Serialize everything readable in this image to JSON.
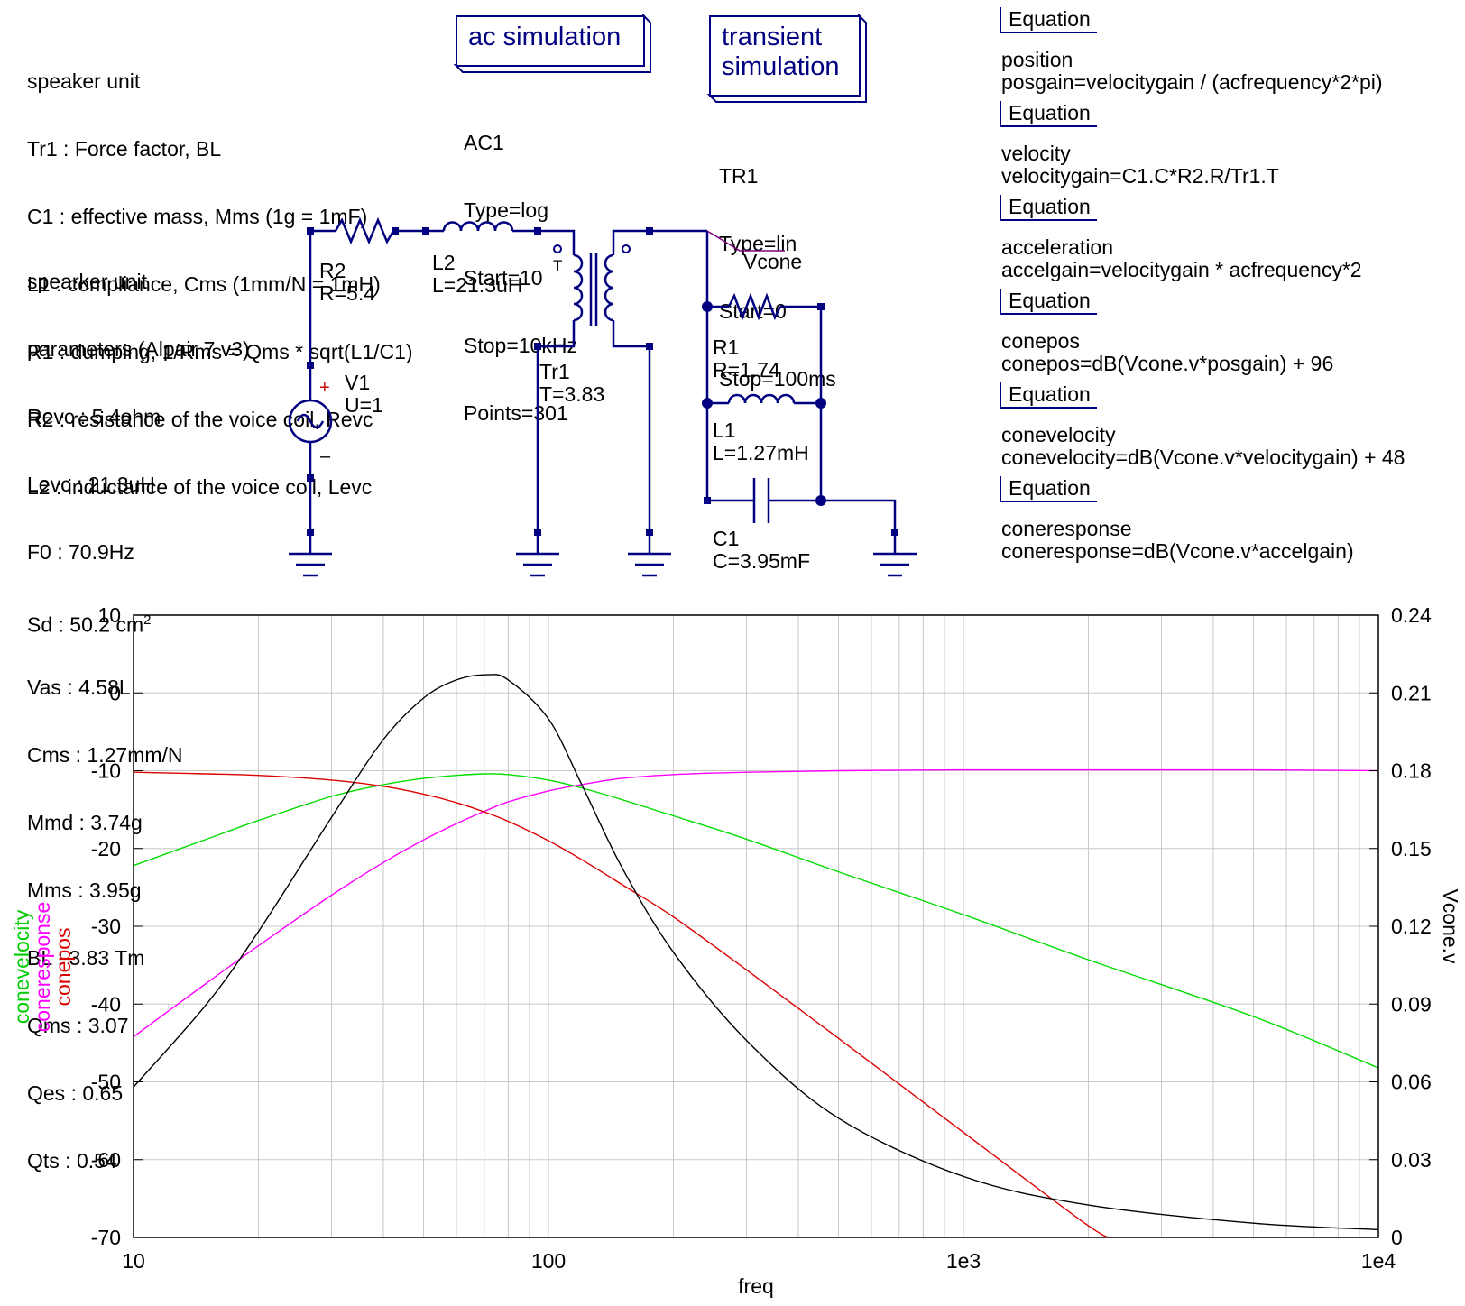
{
  "notes": {
    "description_lines": [
      "speaker unit",
      "Tr1 : Force factor, BL",
      "C1 : effective mass, Mms (1g = 1mF)",
      "L1 : compliance, Cms (1mm/N = 1mH)",
      "R1 : dumping, 1/Rms = Qms * sqrt(L1/C1)",
      "R2 : resistance of the voice coil, Revc",
      "L2 : inductance of the voice coil, Levc"
    ],
    "params_lines": [
      "spearker unit",
      "parameters (Alpair 7 v3)",
      "Revc : 5.4ohm",
      "Levc : 21.3uH",
      "F0 : 70.9Hz",
      "Sd : 50.2 cm",
      "Vas : 4.58L",
      "Cms : 1.27mm/N",
      "Mmd : 3.74g",
      "Mms : 3.95g",
      "BL : 3.83 Tm",
      "Qms : 3.07",
      "Qes : 0.65",
      "Qts : 0.54"
    ],
    "sd_superscript": "2"
  },
  "simulations": {
    "ac": {
      "title": "ac simulation",
      "lines": [
        "AC1",
        "Type=log",
        "Start=10",
        "Stop=10kHz",
        "Points=301"
      ]
    },
    "tr": {
      "title_line1": "transient",
      "title_line2": "simulation",
      "lines": [
        "TR1",
        "Type=lin",
        "Start=0",
        "Stop=100ms"
      ]
    }
  },
  "equations": [
    {
      "header": "Equation",
      "name": "position",
      "expr": "posgain=velocitygain / (acfrequency*2*pi)"
    },
    {
      "header": "Equation",
      "name": "velocity",
      "expr": "velocitygain=C1.C*R2.R/Tr1.T"
    },
    {
      "header": "Equation",
      "name": "acceleration",
      "expr": "accelgain=velocitygain * acfrequency*2"
    },
    {
      "header": "Equation",
      "name": "conepos",
      "expr": "conepos=dB(Vcone.v*posgain) + 96"
    },
    {
      "header": "Equation",
      "name": "conevelocity",
      "expr": "conevelocity=dB(Vcone.v*velocitygain) + 48"
    },
    {
      "header": "Equation",
      "name": "coneresponse",
      "expr": "coneresponse=dB(Vcone.v*accelgain)"
    }
  ],
  "components": {
    "r2": {
      "name": "R2",
      "value": "R=5.4"
    },
    "l2": {
      "name": "L2",
      "value": "L=21.3uH"
    },
    "tr1": {
      "name": "Tr1",
      "value": "T=3.83",
      "dot_label": "T"
    },
    "v1": {
      "name": "V1",
      "value": "U=1",
      "plus": "+",
      "minus": "–"
    },
    "r1": {
      "name": "R1",
      "value": "R=1.74"
    },
    "l1": {
      "name": "L1",
      "value": "L=1.27mH"
    },
    "c1": {
      "name": "C1",
      "value": "C=3.95mF"
    },
    "node": {
      "label": "Vcone"
    }
  },
  "colors": {
    "wire": "#000080",
    "conevelocity": "#00dd00",
    "coneresponse": "#ff00ff",
    "conepos": "#dd0000",
    "vcone": "#000000"
  },
  "chart_data": {
    "type": "line",
    "xscale": "log",
    "xlim": [
      10,
      10000
    ],
    "ylim_left": [
      -70,
      10
    ],
    "ylim_right": [
      0,
      0.24
    ],
    "xlabel": "freq",
    "ylabels_left": [
      "conevelocity",
      "coneresponse",
      "conepos"
    ],
    "ylabel_right": "Vcone.v",
    "x_ticks": [
      10,
      100,
      1000,
      10000
    ],
    "x_tick_labels": [
      "10",
      "100",
      "1e3",
      "1e4"
    ],
    "y_ticks_left": [
      "10",
      "0",
      "-10",
      "-20",
      "-30",
      "-40",
      "-50",
      "-60",
      "-70"
    ],
    "y_ticks_right": [
      "0.24",
      "0.21",
      "0.18",
      "0.15",
      "0.12",
      "0.09",
      "0.06",
      "0.03",
      "0"
    ],
    "grid": true,
    "series": [
      {
        "name": "conevelocity",
        "axis": "left",
        "x": [
          10,
          15,
          20,
          30,
          40,
          50,
          60,
          70.9,
          80,
          100,
          120,
          150,
          200,
          300,
          500,
          1000,
          2000,
          5000,
          10000
        ],
        "y": [
          -22.2,
          -18.8,
          -16.4,
          -13.3,
          -11.8,
          -11.0,
          -10.6,
          -10.4,
          -10.5,
          -11.2,
          -12.2,
          -13.7,
          -15.8,
          -18.8,
          -23.0,
          -28.5,
          -34.3,
          -41.6,
          -48.2
        ]
      },
      {
        "name": "coneresponse",
        "axis": "left",
        "x": [
          10,
          15,
          20,
          30,
          40,
          50,
          60,
          70.9,
          80,
          100,
          120,
          150,
          200,
          300,
          500,
          1000,
          2000,
          5000,
          10000
        ],
        "y": [
          -44.2,
          -37.3,
          -32.5,
          -26.0,
          -21.8,
          -18.9,
          -16.8,
          -15.1,
          -14.0,
          -12.6,
          -11.8,
          -11.0,
          -10.5,
          -10.2,
          -10.0,
          -9.9,
          -9.9,
          -9.9,
          -10.0
        ]
      },
      {
        "name": "conepos",
        "axis": "left",
        "x": [
          10,
          15,
          20,
          30,
          40,
          50,
          60,
          70.9,
          80,
          100,
          120,
          150,
          200,
          300,
          500,
          1000,
          2000,
          2300
        ],
        "y": [
          -10.2,
          -10.4,
          -10.6,
          -11.2,
          -12.0,
          -13.0,
          -14.1,
          -15.4,
          -16.5,
          -19.0,
          -21.4,
          -24.6,
          -28.8,
          -35.6,
          -44.4,
          -56.5,
          -68.5,
          -70.0
        ]
      },
      {
        "name": "Vcone.v",
        "axis": "right",
        "x": [
          10,
          15,
          20,
          30,
          40,
          50,
          60,
          70.9,
          80,
          100,
          120,
          150,
          200,
          300,
          500,
          1000,
          2000,
          5000,
          10000
        ],
        "y": [
          0.058,
          0.09,
          0.118,
          0.162,
          0.192,
          0.208,
          0.215,
          0.217,
          0.215,
          0.2,
          0.175,
          0.143,
          0.11,
          0.076,
          0.046,
          0.0235,
          0.0125,
          0.0055,
          0.003
        ]
      }
    ]
  }
}
